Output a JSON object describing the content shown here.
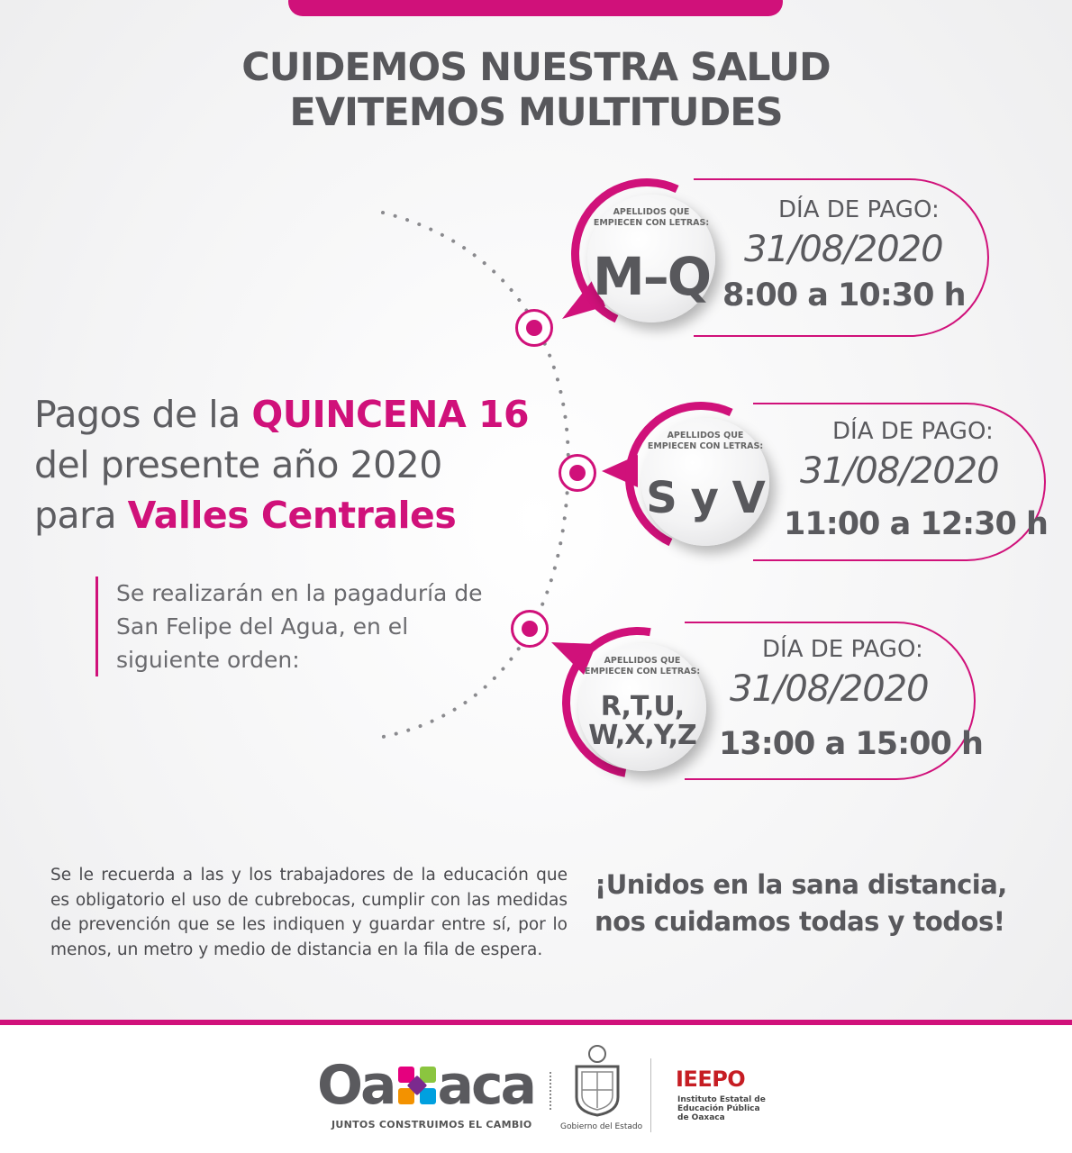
{
  "headline": {
    "line1": "CUIDEMOS NUESTRA SALUD",
    "line2": "EVITEMOS MULTITUDES"
  },
  "intro": {
    "line1_a": "Pagos de la ",
    "line1_b": "QUINCENA 16",
    "line2": "del presente año 2020",
    "line3_a": "para ",
    "line3_b": "Valles Centrales"
  },
  "note": "Se realizarán en la pagaduría de San Felipe del Agua, en el siguiente orden:",
  "groups": [
    {
      "badge_sub": "APELLIDOS QUE EMPIECEN CON LETRAS:",
      "letters": "M–Q",
      "label": "DÍA DE PAGO:",
      "date": "31/08/2020",
      "time": "8:00 a 10:30 h"
    },
    {
      "badge_sub": "APELLIDOS QUE EMPIECEN CON LETRAS:",
      "letters": "S y V",
      "label": "DÍA DE PAGO:",
      "date": "31/08/2020",
      "time": "11:00 a 12:30 h"
    },
    {
      "badge_sub": "APELLIDOS QUE EMPIECEN CON LETRAS:",
      "letters_line1": "R,T,U,",
      "letters_line2": "W,X,Y,Z",
      "label": "DÍA DE PAGO:",
      "date": "31/08/2020",
      "time": "13:00 a 15:00 h"
    }
  ],
  "reminder": "Se le recuerda a las y los trabajadores de la educación que es obligatorio el uso de cubrebocas, cumplir con las medidas de prevención que se les indiquen y guardar entre sí, por lo menos, un metro y medio de distancia en la fila de espera.",
  "slogan": {
    "line1": "¡Unidos en la sana distancia,",
    "line2": "nos cuidamos todas y todos!"
  },
  "footer": {
    "oaxaca_a": "Oa",
    "oaxaca_b": "aca",
    "oaxaca_tagline": "JUNTOS CONSTRUIMOS EL CAMBIO",
    "gobierno": "Gobierno del Estado",
    "ieepo": "IEEPO",
    "ieepo_full": "Instituto Estatal de Educación Pública de Oaxaca"
  },
  "colors": {
    "accent": "#d0117a",
    "text": "#58585c",
    "ieepo_red": "#c61d23"
  },
  "icons": [
    "target-icon",
    "oaxaca-x-logo",
    "state-seal-icon"
  ]
}
